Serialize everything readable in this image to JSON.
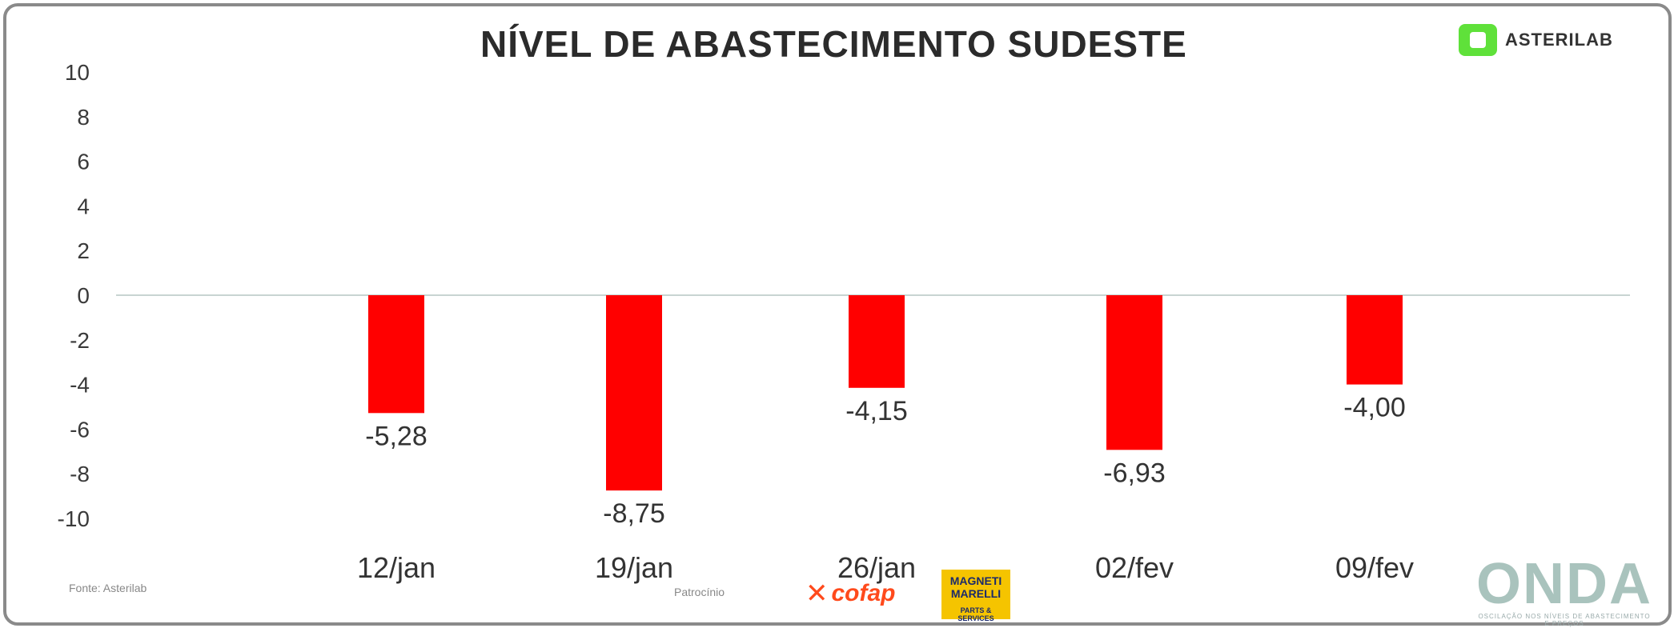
{
  "title": "NÍVEL DE ABASTECIMENTO SUDESTE",
  "brand": {
    "name": "ASTERILAB",
    "accent": "#5fe13a"
  },
  "chart_data": {
    "type": "bar",
    "categories": [
      "12/jan",
      "19/jan",
      "26/jan",
      "02/fev",
      "09/fev"
    ],
    "values": [
      -5.28,
      -8.75,
      -4.15,
      -6.93,
      -4.0
    ],
    "value_labels": [
      "-5,28",
      "-8,75",
      "-4,15",
      "-6,93",
      "-4,00"
    ],
    "ylim": [
      -10,
      10
    ],
    "yticks": [
      10,
      8,
      6,
      4,
      2,
      0,
      -2,
      -4,
      -6,
      -8,
      -10
    ],
    "bar_color": "#ff0000",
    "grid": false,
    "legend": "none"
  },
  "footer": {
    "left_note": "Fonte: Asterilab",
    "center_note": "Patrocínio",
    "logos": {
      "cofap": "cofap",
      "magneti_top": "MAGNETI MARELLI",
      "magneti_bottom": "PARTS & SERVICES",
      "onda_main": "ONDA",
      "onda_sub": "OSCILAÇÃO NOS NÍVEIS DE ABASTECIMENTO E PREÇOS"
    }
  }
}
